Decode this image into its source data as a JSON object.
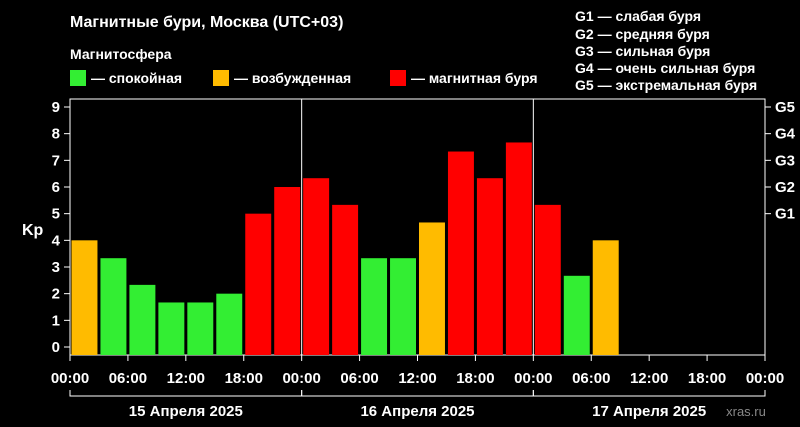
{
  "header": {
    "title": "Магнитные бури, Москва (UTC+03)",
    "subtitle": "Магнитосфера"
  },
  "legend": [
    {
      "label": "— спокойная",
      "color": "#33ee33"
    },
    {
      "label": "— возбужденная",
      "color": "#ffbb00"
    },
    {
      "label": "— магнитная буря",
      "color": "#ff0000"
    }
  ],
  "g_legend": [
    "G1 — слабая буря",
    "G2 — средняя буря",
    "G3 — сильная буря",
    "G4 — очень сильная буря",
    "G5 — экстремальная буря"
  ],
  "watermark": "xras.ru",
  "chart_data": {
    "type": "bar",
    "ylabel": "Kp",
    "ylim": [
      0,
      9
    ],
    "yticks": [
      0,
      1,
      2,
      3,
      4,
      5,
      6,
      7,
      8,
      9
    ],
    "right_axis": [
      {
        "label": "G1",
        "kp": 5
      },
      {
        "label": "G2",
        "kp": 6
      },
      {
        "label": "G3",
        "kp": 7
      },
      {
        "label": "G4",
        "kp": 8
      },
      {
        "label": "G5",
        "kp": 9
      }
    ],
    "xticks": [
      "00:00",
      "06:00",
      "12:00",
      "18:00",
      "00:00",
      "06:00",
      "12:00",
      "18:00",
      "00:00",
      "06:00",
      "12:00",
      "18:00",
      "00:00"
    ],
    "days": [
      "15 Апреля 2025",
      "16 Апреля 2025",
      "17 Апреля 2025"
    ],
    "slots_total": 24,
    "slot_hours": 3,
    "colors": {
      "quiet": "#33ee33",
      "active": "#ffbb00",
      "storm": "#ff0000"
    },
    "values": [
      4.0,
      3.33,
      2.33,
      1.67,
      1.67,
      2.0,
      5.0,
      6.0,
      6.33,
      5.33,
      3.33,
      3.33,
      4.67,
      7.33,
      6.33,
      7.67,
      5.33,
      2.67,
      4.0
    ],
    "levels": [
      "active",
      "quiet",
      "quiet",
      "quiet",
      "quiet",
      "quiet",
      "storm",
      "storm",
      "storm",
      "storm",
      "quiet",
      "quiet",
      "active",
      "storm",
      "storm",
      "storm",
      "storm",
      "quiet",
      "active"
    ],
    "grid": false
  }
}
